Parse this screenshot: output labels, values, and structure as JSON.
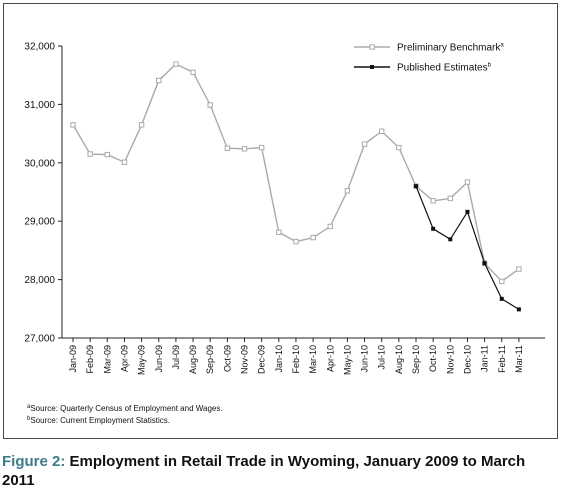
{
  "chart_data": {
    "type": "line",
    "categories": [
      "Jan-09",
      "Feb-09",
      "Mar-09",
      "Apr-09",
      "May-09",
      "Jun-09",
      "Jul-09",
      "Aug-09",
      "Sep-09",
      "Oct-09",
      "Nov-09",
      "Dec-09",
      "Jan-10",
      "Feb-10",
      "Mar-10",
      "Apr-10",
      "May-10",
      "Jun-10",
      "Jul-10",
      "Aug-10",
      "Sep-10",
      "Oct-10",
      "Nov-10",
      "Dec-10",
      "Jan-11",
      "Feb-11",
      "Mar-11"
    ],
    "series": [
      {
        "name": "Preliminary Benchmark",
        "superscript": "a",
        "color": "#aaaaaa",
        "marker": "square-open",
        "values": [
          30650,
          30150,
          30140,
          30010,
          30650,
          31410,
          31690,
          31550,
          30990,
          30250,
          30240,
          30260,
          28810,
          28650,
          28720,
          28910,
          29520,
          30320,
          30540,
          30260,
          29600,
          29350,
          29390,
          29670,
          28280,
          27970,
          28180
        ]
      },
      {
        "name": "Published Estimates",
        "superscript": "b",
        "color": "#111111",
        "marker": "square-filled",
        "values": [
          null,
          null,
          null,
          null,
          null,
          null,
          null,
          null,
          null,
          null,
          null,
          null,
          null,
          null,
          null,
          null,
          null,
          null,
          null,
          null,
          29600,
          28870,
          28690,
          29160,
          28280,
          27670,
          27490
        ]
      }
    ],
    "ylim": [
      27000,
      32000
    ],
    "yticks": [
      27000,
      28000,
      29000,
      30000,
      31000,
      32000
    ],
    "ytick_labels": [
      "27,000",
      "28,000",
      "29,000",
      "30,000",
      "31,000",
      "32,000"
    ],
    "legend_position": "top-right",
    "grid": false
  },
  "footnotes": {
    "a_marker": "a",
    "a_text": "Source: Quarterly Census of Employment and Wages.",
    "b_marker": "b",
    "b_text": "Source: Current Employment Statistics."
  },
  "caption": {
    "label": "Figure 2:",
    "text": " Employment in Retail Trade in Wyoming, January 2009 to March 2011"
  }
}
